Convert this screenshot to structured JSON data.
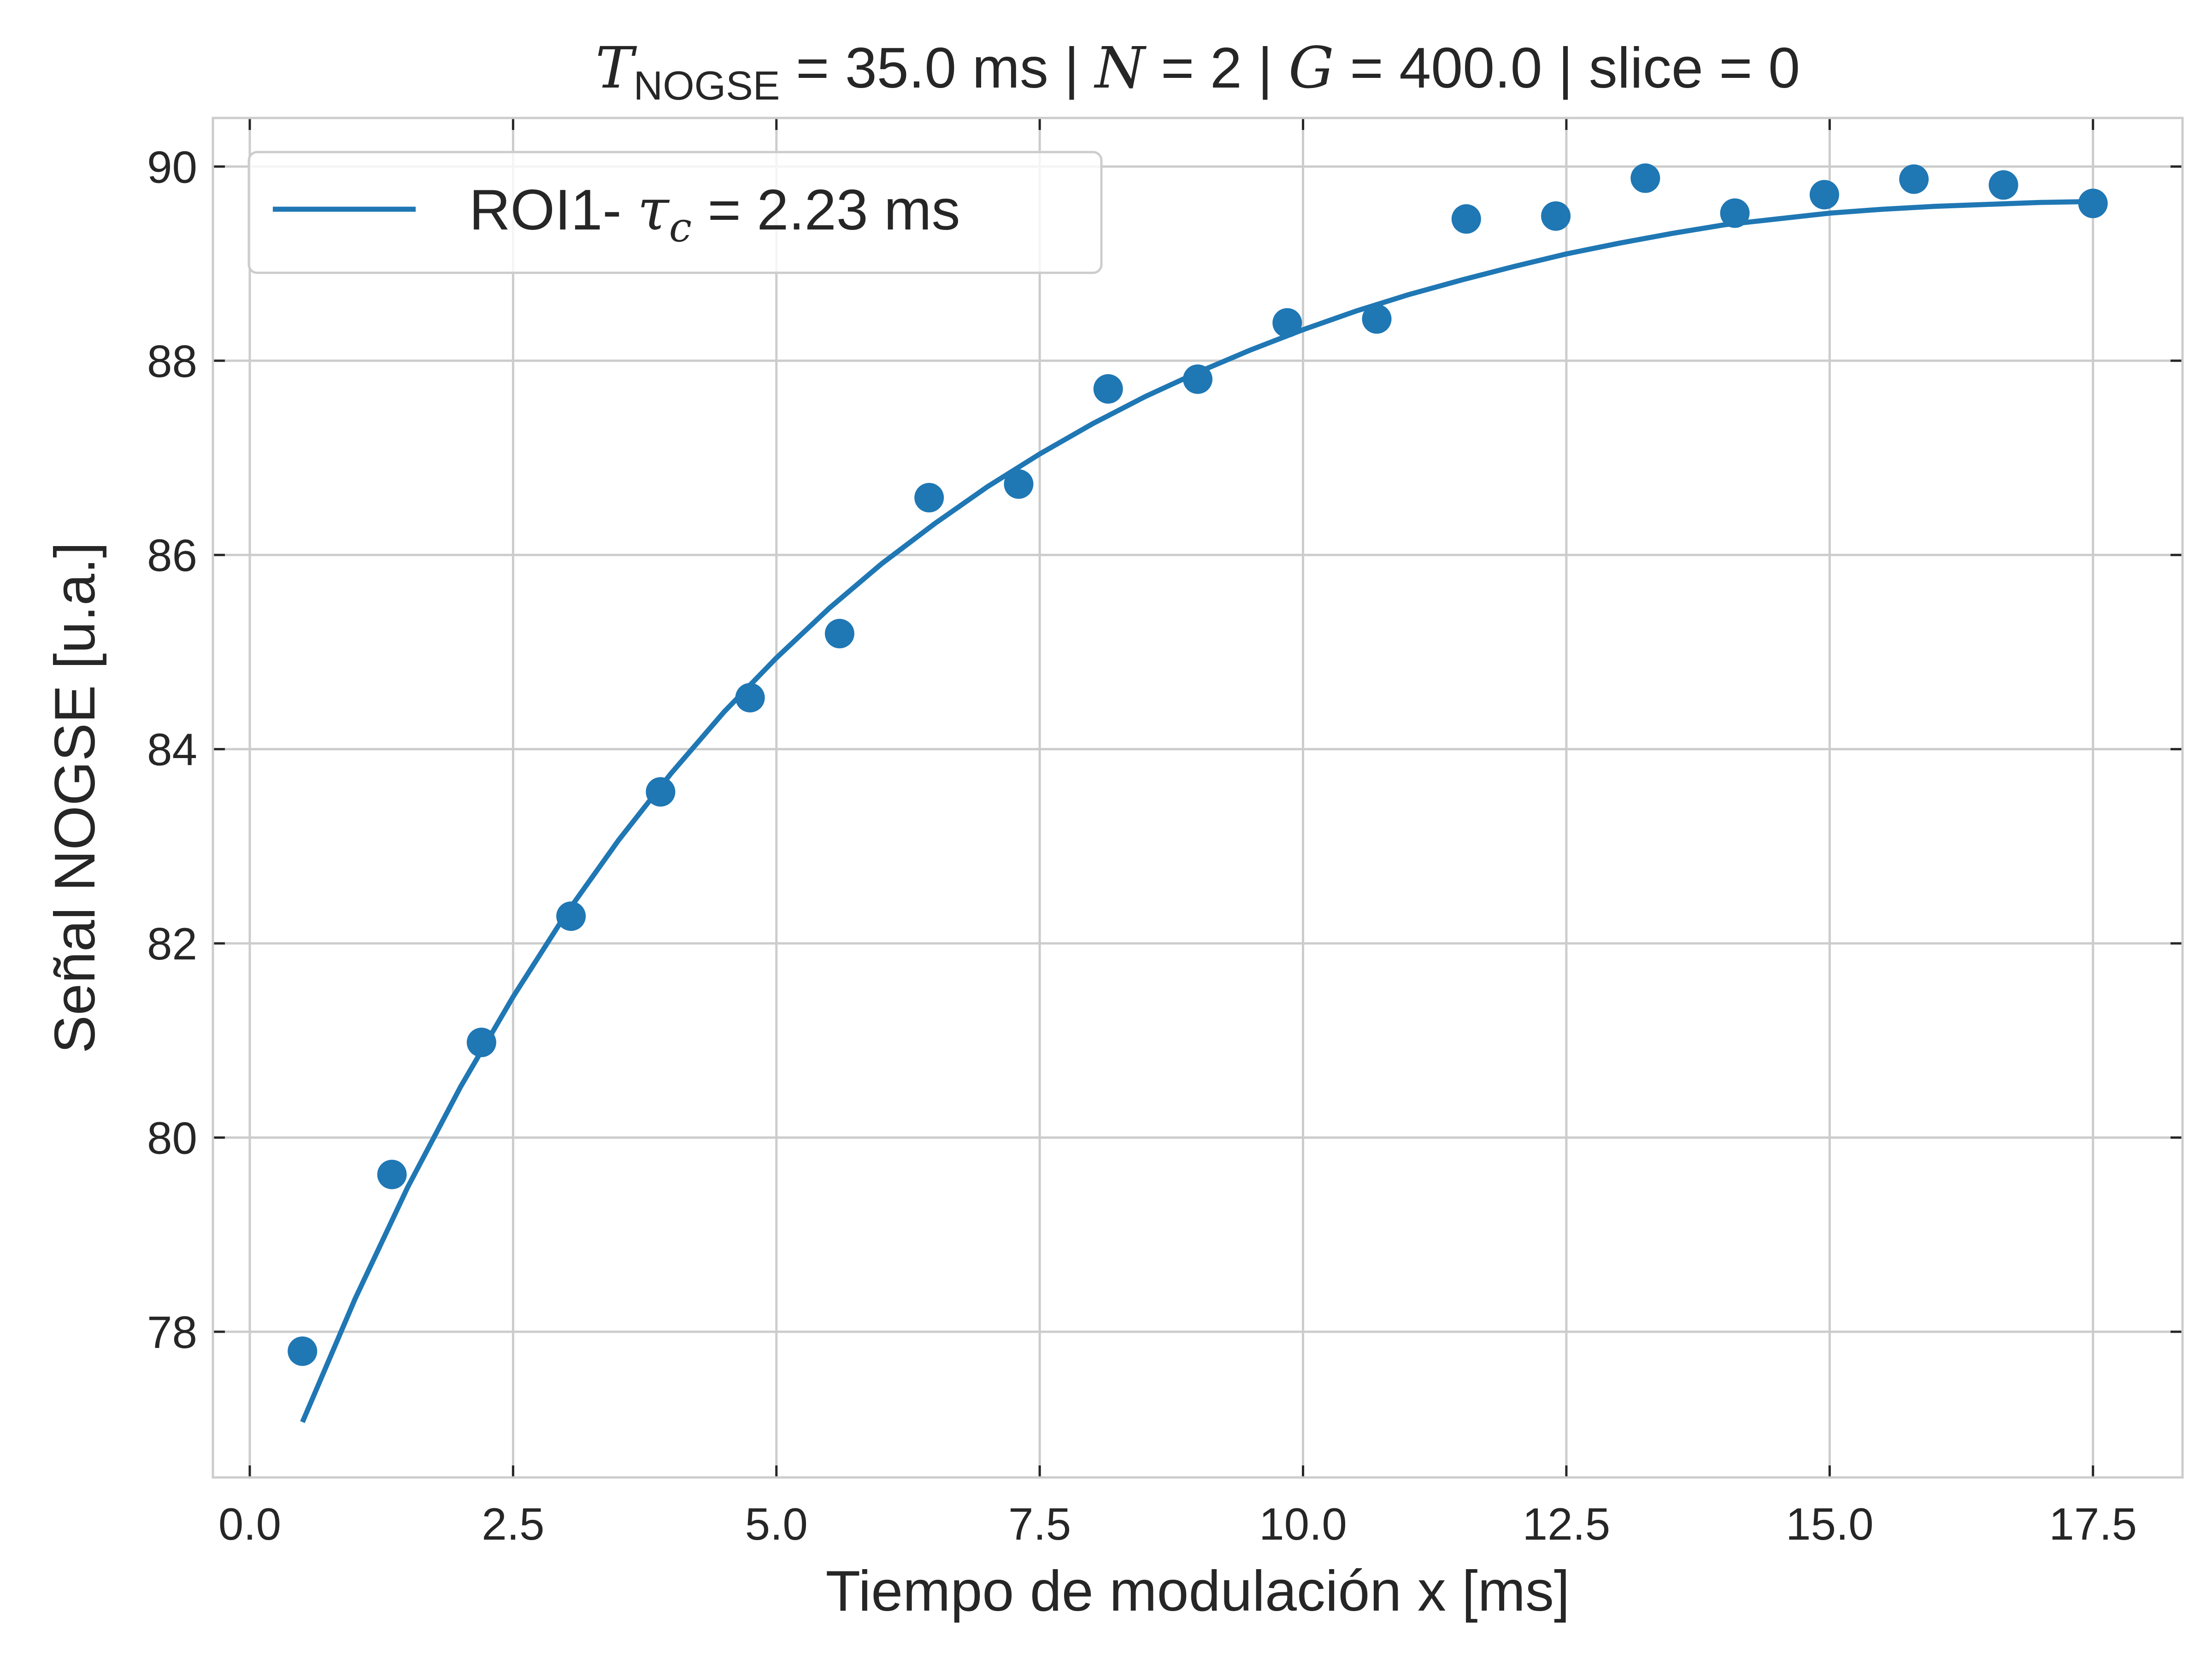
{
  "chart_data": {
    "type": "scatter",
    "title": {
      "t_symbol": "T",
      "t_subscript": "NOGSE",
      "part1": " = 35.0 ms | ",
      "n_symbol": "N",
      "part2": " = 2 | ",
      "g_symbol": "G",
      "part3": " = 400.0 | slice = 0"
    },
    "xlabel": "Tiempo de modulación x [ms]",
    "ylabel": "Señal NOGSE [u.a.]",
    "xlim": [
      -0.35,
      18.35
    ],
    "ylim": [
      76.5,
      90.5
    ],
    "x_ticks": [
      0.0,
      2.5,
      5.0,
      7.5,
      10.0,
      12.5,
      15.0,
      17.5
    ],
    "x_tick_labels": [
      "0.0",
      "2.5",
      "5.0",
      "7.5",
      "10.0",
      "12.5",
      "15.0",
      "17.5"
    ],
    "y_ticks": [
      78,
      80,
      82,
      84,
      86,
      88,
      90
    ],
    "y_tick_labels": [
      "78",
      "80",
      "82",
      "84",
      "86",
      "88",
      "90"
    ],
    "grid": true,
    "legend": {
      "position": "top-left",
      "label_prefix": "ROI1- ",
      "tau_symbol": "τ",
      "tau_subscript": "c",
      "label_suffix": " = 2.23 ms"
    },
    "series": [
      {
        "kind": "scatter",
        "color": "#1f77b4",
        "x": [
          0.5,
          1.35,
          2.2,
          3.05,
          3.9,
          4.75,
          5.6,
          6.45,
          7.3,
          8.15,
          9.0,
          9.85,
          10.7,
          11.55,
          12.4,
          13.25,
          14.1,
          14.95,
          15.8,
          16.65,
          17.5
        ],
        "y": [
          77.8,
          79.62,
          80.98,
          82.28,
          83.56,
          84.53,
          85.19,
          86.59,
          86.73,
          87.71,
          87.81,
          88.39,
          88.43,
          89.46,
          89.49,
          89.88,
          89.52,
          89.71,
          89.87,
          89.81,
          89.62
        ]
      },
      {
        "kind": "line",
        "color": "#1f77b4",
        "x": [
          0.5,
          1.0,
          1.5,
          2.0,
          2.5,
          3.0,
          3.5,
          4.0,
          4.5,
          5.0,
          5.5,
          6.0,
          6.5,
          7.0,
          7.5,
          8.0,
          8.5,
          9.0,
          9.5,
          10.0,
          10.5,
          11.0,
          11.5,
          12.0,
          12.5,
          13.0,
          13.5,
          14.0,
          14.5,
          15.0,
          15.5,
          16.0,
          16.5,
          17.0,
          17.5
        ],
        "y": [
          77.07,
          78.34,
          79.49,
          80.52,
          81.45,
          82.3,
          83.06,
          83.75,
          84.38,
          84.94,
          85.45,
          85.91,
          86.32,
          86.7,
          87.04,
          87.35,
          87.63,
          87.88,
          88.11,
          88.32,
          88.51,
          88.68,
          88.83,
          88.97,
          89.1,
          89.21,
          89.31,
          89.4,
          89.46,
          89.52,
          89.56,
          89.59,
          89.61,
          89.63,
          89.64
        ]
      }
    ]
  }
}
